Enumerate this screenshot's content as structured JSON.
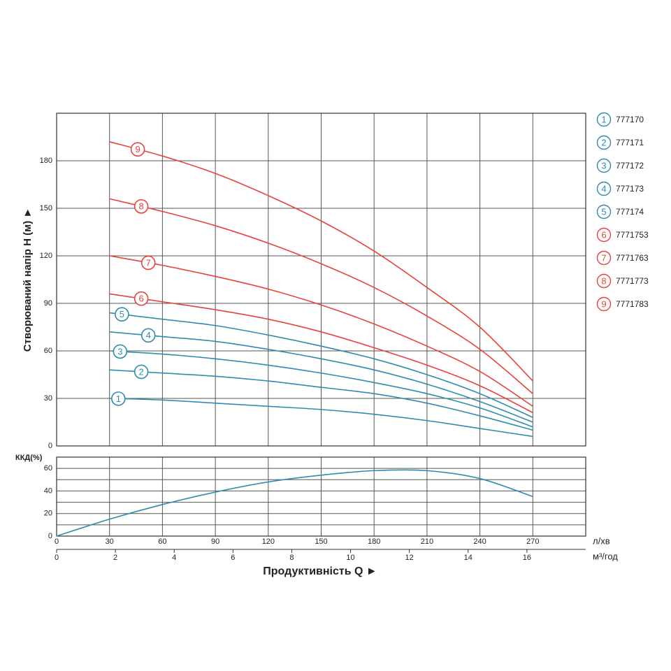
{
  "chart_data": [
    {
      "type": "line",
      "y_label": "Створюваний напір H (м) ►",
      "x": [
        30,
        60,
        90,
        120,
        150,
        180,
        210,
        240,
        270
      ],
      "xlim": [
        0,
        300
      ],
      "xticks": [
        30,
        60,
        90,
        120,
        150,
        180,
        210,
        240,
        270
      ],
      "ylim": [
        0,
        210
      ],
      "yticks": [
        0,
        30,
        60,
        90,
        120,
        150,
        180
      ],
      "grid": true,
      "legend": "right",
      "series": [
        {
          "label": "1",
          "name": "777170",
          "color": "#2f8cb0",
          "values": [
            30,
            29,
            27,
            25,
            23,
            20,
            16,
            11,
            6
          ]
        },
        {
          "label": "2",
          "name": "777171",
          "color": "#2f8cb0",
          "values": [
            48,
            46,
            44,
            41,
            37,
            33,
            27,
            19,
            10
          ]
        },
        {
          "label": "3",
          "name": "777172",
          "color": "#2f8cb0",
          "values": [
            60,
            58,
            55,
            51,
            46,
            40,
            33,
            24,
            12
          ]
        },
        {
          "label": "4",
          "name": "777173",
          "color": "#2f8cb0",
          "values": [
            72,
            69,
            66,
            61,
            55,
            48,
            39,
            28,
            15
          ]
        },
        {
          "label": "5",
          "name": "777174",
          "color": "#2f8cb0",
          "values": [
            84,
            80,
            76,
            70,
            63,
            55,
            45,
            33,
            18
          ]
        },
        {
          "label": "6",
          "name": "7771753",
          "color": "#e8433b",
          "values": [
            96,
            91,
            86,
            80,
            72,
            62,
            51,
            38,
            21
          ]
        },
        {
          "label": "7",
          "name": "7771763",
          "color": "#e8433b",
          "values": [
            120,
            114,
            107,
            99,
            89,
            77,
            63,
            47,
            25
          ]
        },
        {
          "label": "8",
          "name": "7771773",
          "color": "#e8433b",
          "values": [
            156,
            148,
            139,
            128,
            115,
            100,
            82,
            61,
            33
          ]
        },
        {
          "label": "9",
          "name": "7771783",
          "color": "#e8433b",
          "values": [
            192,
            183,
            172,
            158,
            142,
            123,
            100,
            75,
            41
          ]
        }
      ]
    },
    {
      "type": "line",
      "y_label": "ККД(%)",
      "x_label": "Продуктивність Q ►",
      "x_unit": "л/хв",
      "x2_unit": "м³/год",
      "x": [
        0,
        30,
        60,
        90,
        120,
        150,
        180,
        210,
        240,
        270
      ],
      "xlim": [
        0,
        300
      ],
      "xticks": [
        0,
        30,
        60,
        90,
        120,
        150,
        180,
        210,
        240,
        270
      ],
      "x2lim": [
        0,
        18
      ],
      "x2ticks": [
        0,
        2,
        4,
        6,
        8,
        10,
        12,
        14,
        16
      ],
      "ylim": [
        0,
        70
      ],
      "yticks": [
        0,
        20,
        40,
        60
      ],
      "y_minor_ticks": [
        10,
        30,
        50
      ],
      "grid": true,
      "series": [
        {
          "color": "#2f8cb0",
          "values": [
            0,
            15,
            28,
            39,
            48,
            54,
            58,
            58,
            51,
            35
          ]
        }
      ]
    }
  ]
}
